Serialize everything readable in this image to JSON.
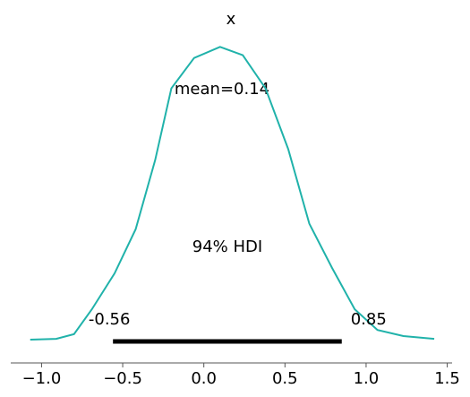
{
  "chart_data": {
    "type": "line",
    "title": "x",
    "annotation": "mean=0.14",
    "x": [
      -1.07,
      -0.91,
      -0.8,
      -0.69,
      -0.55,
      -0.42,
      -0.3,
      -0.2,
      -0.06,
      0.1,
      0.24,
      0.38,
      0.52,
      0.65,
      0.79,
      0.93,
      1.07,
      1.23,
      1.42
    ],
    "series": [
      {
        "name": "x",
        "color": "#20b2aa",
        "values": [
          0,
          0.003,
          0.02,
          0.11,
          0.24,
          0.4,
          0.65,
          0.91,
          1.02,
          1.06,
          1.03,
          0.91,
          0.69,
          0.42,
          0.26,
          0.11,
          0.035,
          0.013,
          0.003
        ]
      }
    ],
    "hdi": {
      "label": "94% HDI",
      "low": -0.56,
      "high": 0.85,
      "color": "#000000"
    },
    "xlim": [
      -1.19,
      1.53
    ],
    "ylim": [
      0,
      1.1
    ],
    "xticks": [
      {
        "value": -1.0,
        "label": "−1.0"
      },
      {
        "value": -0.5,
        "label": "−0.5"
      },
      {
        "value": 0.0,
        "label": "0.0"
      },
      {
        "value": 0.5,
        "label": "0.5"
      },
      {
        "value": 1.0,
        "label": "1.0"
      },
      {
        "value": 1.5,
        "label": "1.5"
      }
    ]
  }
}
